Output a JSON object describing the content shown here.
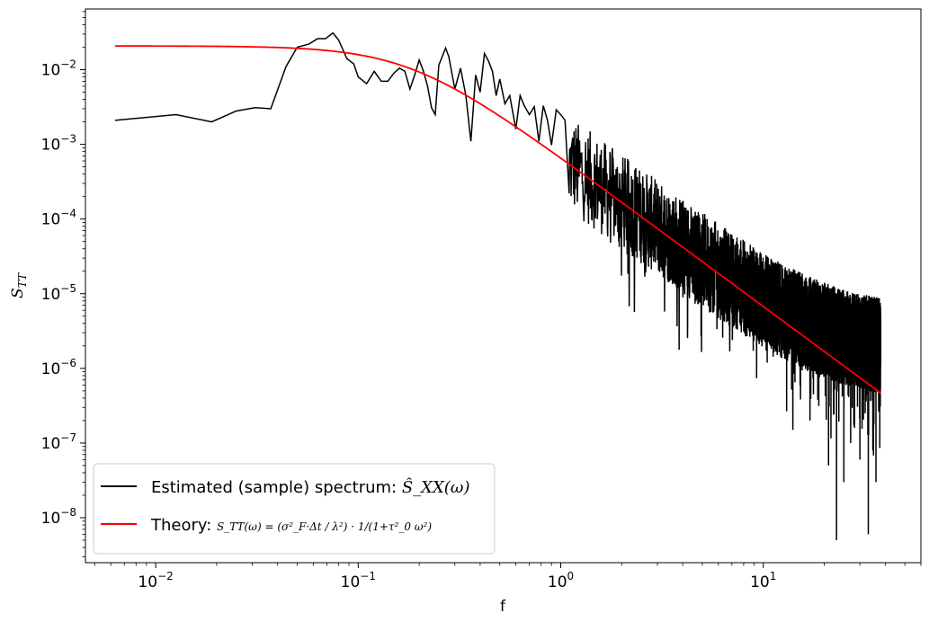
{
  "chart_data": {
    "type": "line",
    "title": "",
    "xlabel": "f",
    "ylabel": "S",
    "ylabel_sub": "TT",
    "xscale": "log",
    "yscale": "log",
    "xlim": [
      0.0045,
      60
    ],
    "ylim": [
      2.5e-09,
      0.065
    ],
    "grid": false,
    "legend_position": "lower-left",
    "x_ticks": [
      {
        "value": 0.01,
        "base": "10",
        "exp": "−2"
      },
      {
        "value": 0.1,
        "base": "10",
        "exp": "−1"
      },
      {
        "value": 1,
        "base": "10",
        "exp": "0"
      },
      {
        "value": 10,
        "base": "10",
        "exp": "1"
      }
    ],
    "y_ticks": [
      {
        "value": 1e-08,
        "base": "10",
        "exp": "−8"
      },
      {
        "value": 1e-07,
        "base": "10",
        "exp": "−7"
      },
      {
        "value": 1e-06,
        "base": "10",
        "exp": "−6"
      },
      {
        "value": 1e-05,
        "base": "10",
        "exp": "−5"
      },
      {
        "value": 0.0001,
        "base": "10",
        "exp": "−4"
      },
      {
        "value": 0.001,
        "base": "10",
        "exp": "−3"
      },
      {
        "value": 0.01,
        "base": "10",
        "exp": "−2"
      }
    ],
    "series": [
      {
        "name": "Estimated (sample) spectrum",
        "legend_label": "Estimated (sample) spectrum: ",
        "legend_math": "Ŝ_XX(ω)",
        "color": "#000000",
        "x": [
          0.0063,
          0.0126,
          0.0189,
          0.025,
          0.031,
          0.037,
          0.044,
          0.05,
          0.057,
          0.063,
          0.069,
          0.075,
          0.08,
          0.088,
          0.095,
          0.1,
          0.11,
          0.12,
          0.13,
          0.14,
          0.15,
          0.16,
          0.17,
          0.18,
          0.19,
          0.2,
          0.21,
          0.22,
          0.23,
          0.24,
          0.25,
          0.27,
          0.28,
          0.3,
          0.32,
          0.34,
          0.36,
          0.38,
          0.4,
          0.42,
          0.44,
          0.46,
          0.48,
          0.5,
          0.53,
          0.56,
          0.6,
          0.63,
          0.66,
          0.7,
          0.74,
          0.78,
          0.82,
          0.86,
          0.9,
          0.95,
          1.0,
          1.05,
          1.1
        ],
        "values": [
          0.0021,
          0.0025,
          0.002,
          0.0028,
          0.0031,
          0.003,
          0.011,
          0.02,
          0.022,
          0.026,
          0.026,
          0.031,
          0.025,
          0.014,
          0.012,
          0.008,
          0.0065,
          0.0095,
          0.007,
          0.007,
          0.009,
          0.0105,
          0.0095,
          0.0055,
          0.0085,
          0.0135,
          0.0095,
          0.006,
          0.0031,
          0.0025,
          0.0115,
          0.0195,
          0.015,
          0.0055,
          0.0105,
          0.0045,
          0.0011,
          0.0085,
          0.005,
          0.0165,
          0.013,
          0.0095,
          0.0045,
          0.0075,
          0.0035,
          0.0045,
          0.0016,
          0.0045,
          0.0033,
          0.0025,
          0.0032,
          0.0011,
          0.0033,
          0.0021,
          0.00098,
          0.0029,
          0.0025,
          0.0021,
          0.00022
        ],
        "continuation": {
          "x_end": 38,
          "trend_amplitude": 0.00078,
          "trend_exponent": -2,
          "trend_offset": 1.8e-06,
          "spread_decades": 0.8,
          "deep_dips": [
            [
              21,
              5e-08
            ],
            [
              23,
              5e-09
            ],
            [
              27,
              1e-07
            ],
            [
              33,
              6e-09
            ],
            [
              36,
              3e-08
            ],
            [
              14,
              1.5e-07
            ],
            [
              17,
              2e-07
            ],
            [
              25,
              3e-08
            ],
            [
              30,
              6e-08
            ]
          ],
          "min_value": 1e-09
        }
      },
      {
        "name": "Theory",
        "legend_label": "Theory: ",
        "legend_math": "S_TT(ω) = (σ²_F·Δt / λ²) · 1/(1+τ²_0 ω²)",
        "color": "#ff0000",
        "model": "lorentzian",
        "S0": 0.0208,
        "corner_f": 0.18,
        "x_range": [
          0.0063,
          38
        ]
      }
    ]
  }
}
